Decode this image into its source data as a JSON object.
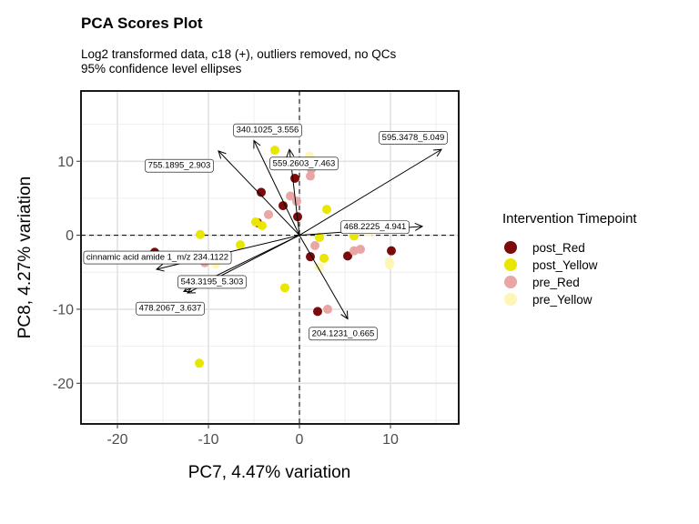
{
  "chart_data": {
    "type": "scatter",
    "title": "PCA Scores Plot",
    "subtitle_lines": [
      "Log2 transformed data, c18 (+), outliers removed, no QCs",
      "95% confidence level ellipses"
    ],
    "xlabel": "PC7, 4.47% variation",
    "ylabel": "PC8, 4.27% variation",
    "xlim": [
      -24,
      17.5
    ],
    "ylim": [
      -25.5,
      19.5
    ],
    "xticks": [
      -20,
      -10,
      0,
      10
    ],
    "yticks": [
      -20,
      -10,
      0,
      10
    ],
    "grid": true,
    "reference_lines": {
      "x": 0,
      "y": 0
    },
    "legend": {
      "title": "Intervention Timepoint",
      "position": "right"
    },
    "series": [
      {
        "name": "post_Red",
        "color": "#7b0a0a",
        "points": [
          [
            -4.2,
            5.8
          ],
          [
            -4.6,
            1.7
          ],
          [
            -1.8,
            4
          ],
          [
            -0.5,
            7.7
          ],
          [
            -0.2,
            2.5
          ],
          [
            1.2,
            -2.9
          ],
          [
            2,
            -10.3
          ],
          [
            5.3,
            -2.8
          ],
          [
            10.1,
            -2.1
          ],
          [
            -15.9,
            -2.3
          ]
        ]
      },
      {
        "name": "post_Yellow",
        "color": "#e9e600",
        "points": [
          [
            -2.7,
            11.5
          ],
          [
            -4.1,
            1.3
          ],
          [
            -4.8,
            1.8
          ],
          [
            -6.5,
            -1.3
          ],
          [
            -10.9,
            0.1
          ],
          [
            -11,
            -17.3
          ],
          [
            -1.6,
            -7.1
          ],
          [
            2.2,
            -0.3
          ],
          [
            2.7,
            -3.1
          ],
          [
            3,
            3.5
          ],
          [
            6,
            -0.1
          ]
        ]
      },
      {
        "name": "pre_Red",
        "color": "#eaa5a5",
        "points": [
          [
            1.3,
            8.9
          ],
          [
            1.2,
            8
          ],
          [
            -1,
            5.3
          ],
          [
            -0.3,
            4.6
          ],
          [
            -3.4,
            2.8
          ],
          [
            1.7,
            -1.4
          ],
          [
            3.1,
            -10
          ],
          [
            6,
            -2.1
          ],
          [
            6.7,
            -1.9
          ],
          [
            -10.4,
            -3.7
          ]
        ]
      },
      {
        "name": "pre_Yellow",
        "color": "#fdf6b6",
        "points": [
          [
            1.1,
            10.7
          ],
          [
            2.2,
            -4.3
          ],
          [
            9.9,
            -3.6
          ],
          [
            9.9,
            -4
          ],
          [
            -9.2,
            -3.9
          ],
          [
            -11.7,
            -6.2
          ],
          [
            7.6,
            0.4
          ]
        ]
      }
    ],
    "loadings": [
      {
        "label": "340.1025_3.556",
        "x": -5,
        "y": 12.8,
        "label_x": -3.5,
        "label_y": 14.3
      },
      {
        "label": "595.3478_5.049",
        "x": 15.6,
        "y": 11.6,
        "label_x": 12.5,
        "label_y": 13.3
      },
      {
        "label": "755.1895_2.903",
        "x": -8.9,
        "y": 11.4,
        "label_x": -13.2,
        "label_y": 9.5
      },
      {
        "label": "559.2603_7.463",
        "x": -1.1,
        "y": 11.6,
        "label_x": 0.5,
        "label_y": 9.8
      },
      {
        "label": "468.2225_4.941",
        "x": 13.5,
        "y": 1.2,
        "label_x": 8.3,
        "label_y": 1.2
      },
      {
        "label": "cinnamic acid amide 1_m/z 234.1122",
        "x": -15.7,
        "y": -4.6,
        "label_x": -15.6,
        "label_y": -2.9
      },
      {
        "label": "543.3195_5.303",
        "x": -12.3,
        "y": -7.8,
        "label_x": -9.6,
        "label_y": -6.2
      },
      {
        "label": "478.2067_3.637",
        "x": -12.7,
        "y": -7.6,
        "label_x": -14.2,
        "label_y": -9.8
      },
      {
        "label": "204.1231_0.665",
        "x": 5.3,
        "y": -11.3,
        "label_x": 4.8,
        "label_y": -13.2
      }
    ]
  }
}
